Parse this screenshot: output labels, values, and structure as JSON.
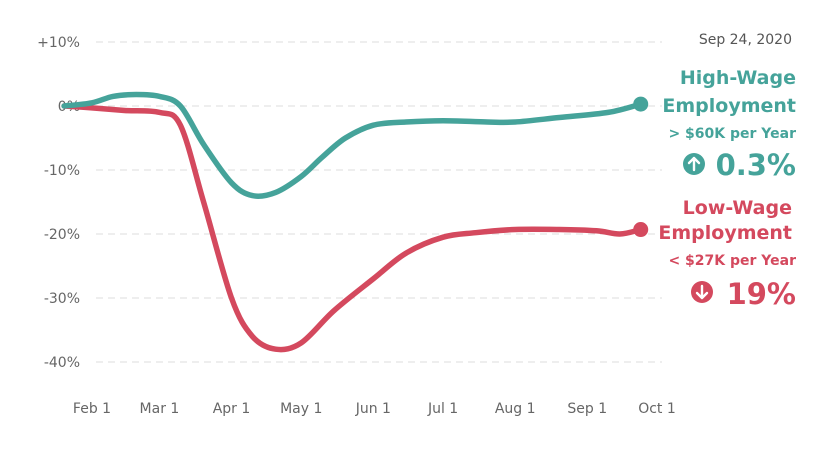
{
  "chart_data": {
    "type": "line",
    "date_label": "Sep 24, 2020",
    "x_ticks": [
      "Feb 1",
      "Mar 1",
      "Apr 1",
      "May 1",
      "Jun 1",
      "Jul 1",
      "Aug 1",
      "Sep 1",
      "Oct 1"
    ],
    "y_ticks": [
      {
        "value": 10,
        "label": "+10%"
      },
      {
        "value": 0,
        "label": "0%"
      },
      {
        "value": -10,
        "label": "-10%"
      },
      {
        "value": -20,
        "label": "-20%"
      },
      {
        "value": -30,
        "label": "-30%"
      },
      {
        "value": -40,
        "label": "-40%"
      }
    ],
    "ylim": [
      -40,
      10
    ],
    "grid": true,
    "series": [
      {
        "name": "High-Wage Employment",
        "subtitle": "> $60K per Year",
        "change": "0.3%",
        "direction": "up",
        "color": "#45a39a",
        "points": [
          [
            "2020-01-20",
            0.0
          ],
          [
            "2020-02-01",
            0.5
          ],
          [
            "2020-02-10",
            1.5
          ],
          [
            "2020-02-20",
            1.8
          ],
          [
            "2020-03-01",
            1.5
          ],
          [
            "2020-03-10",
            0.0
          ],
          [
            "2020-03-20",
            -6.0
          ],
          [
            "2020-04-01",
            -12.0
          ],
          [
            "2020-04-10",
            -14.0
          ],
          [
            "2020-04-20",
            -13.5
          ],
          [
            "2020-05-01",
            -11.0
          ],
          [
            "2020-05-10",
            -8.0
          ],
          [
            "2020-05-20",
            -5.0
          ],
          [
            "2020-06-01",
            -3.0
          ],
          [
            "2020-06-15",
            -2.5
          ],
          [
            "2020-07-01",
            -2.3
          ],
          [
            "2020-07-20",
            -2.5
          ],
          [
            "2020-08-01",
            -2.5
          ],
          [
            "2020-08-20",
            -1.8
          ],
          [
            "2020-09-10",
            -1.0
          ],
          [
            "2020-09-24",
            0.3
          ]
        ]
      },
      {
        "name": "Low-Wage Employment",
        "subtitle": "< $27K per Year",
        "change": "19%",
        "direction": "down",
        "color": "#d4495e",
        "points": [
          [
            "2020-01-20",
            0.0
          ],
          [
            "2020-02-01",
            -0.3
          ],
          [
            "2020-02-15",
            -0.7
          ],
          [
            "2020-03-01",
            -1.0
          ],
          [
            "2020-03-10",
            -3.0
          ],
          [
            "2020-03-20",
            -15.0
          ],
          [
            "2020-04-01",
            -30.0
          ],
          [
            "2020-04-10",
            -36.0
          ],
          [
            "2020-04-20",
            -38.0
          ],
          [
            "2020-05-01",
            -37.0
          ],
          [
            "2020-05-15",
            -32.0
          ],
          [
            "2020-06-01",
            -27.0
          ],
          [
            "2020-06-15",
            -23.0
          ],
          [
            "2020-07-01",
            -20.5
          ],
          [
            "2020-07-15",
            -19.8
          ],
          [
            "2020-08-01",
            -19.3
          ],
          [
            "2020-08-20",
            -19.3
          ],
          [
            "2020-09-05",
            -19.5
          ],
          [
            "2020-09-15",
            -20.0
          ],
          [
            "2020-09-24",
            -19.3
          ]
        ]
      }
    ]
  }
}
